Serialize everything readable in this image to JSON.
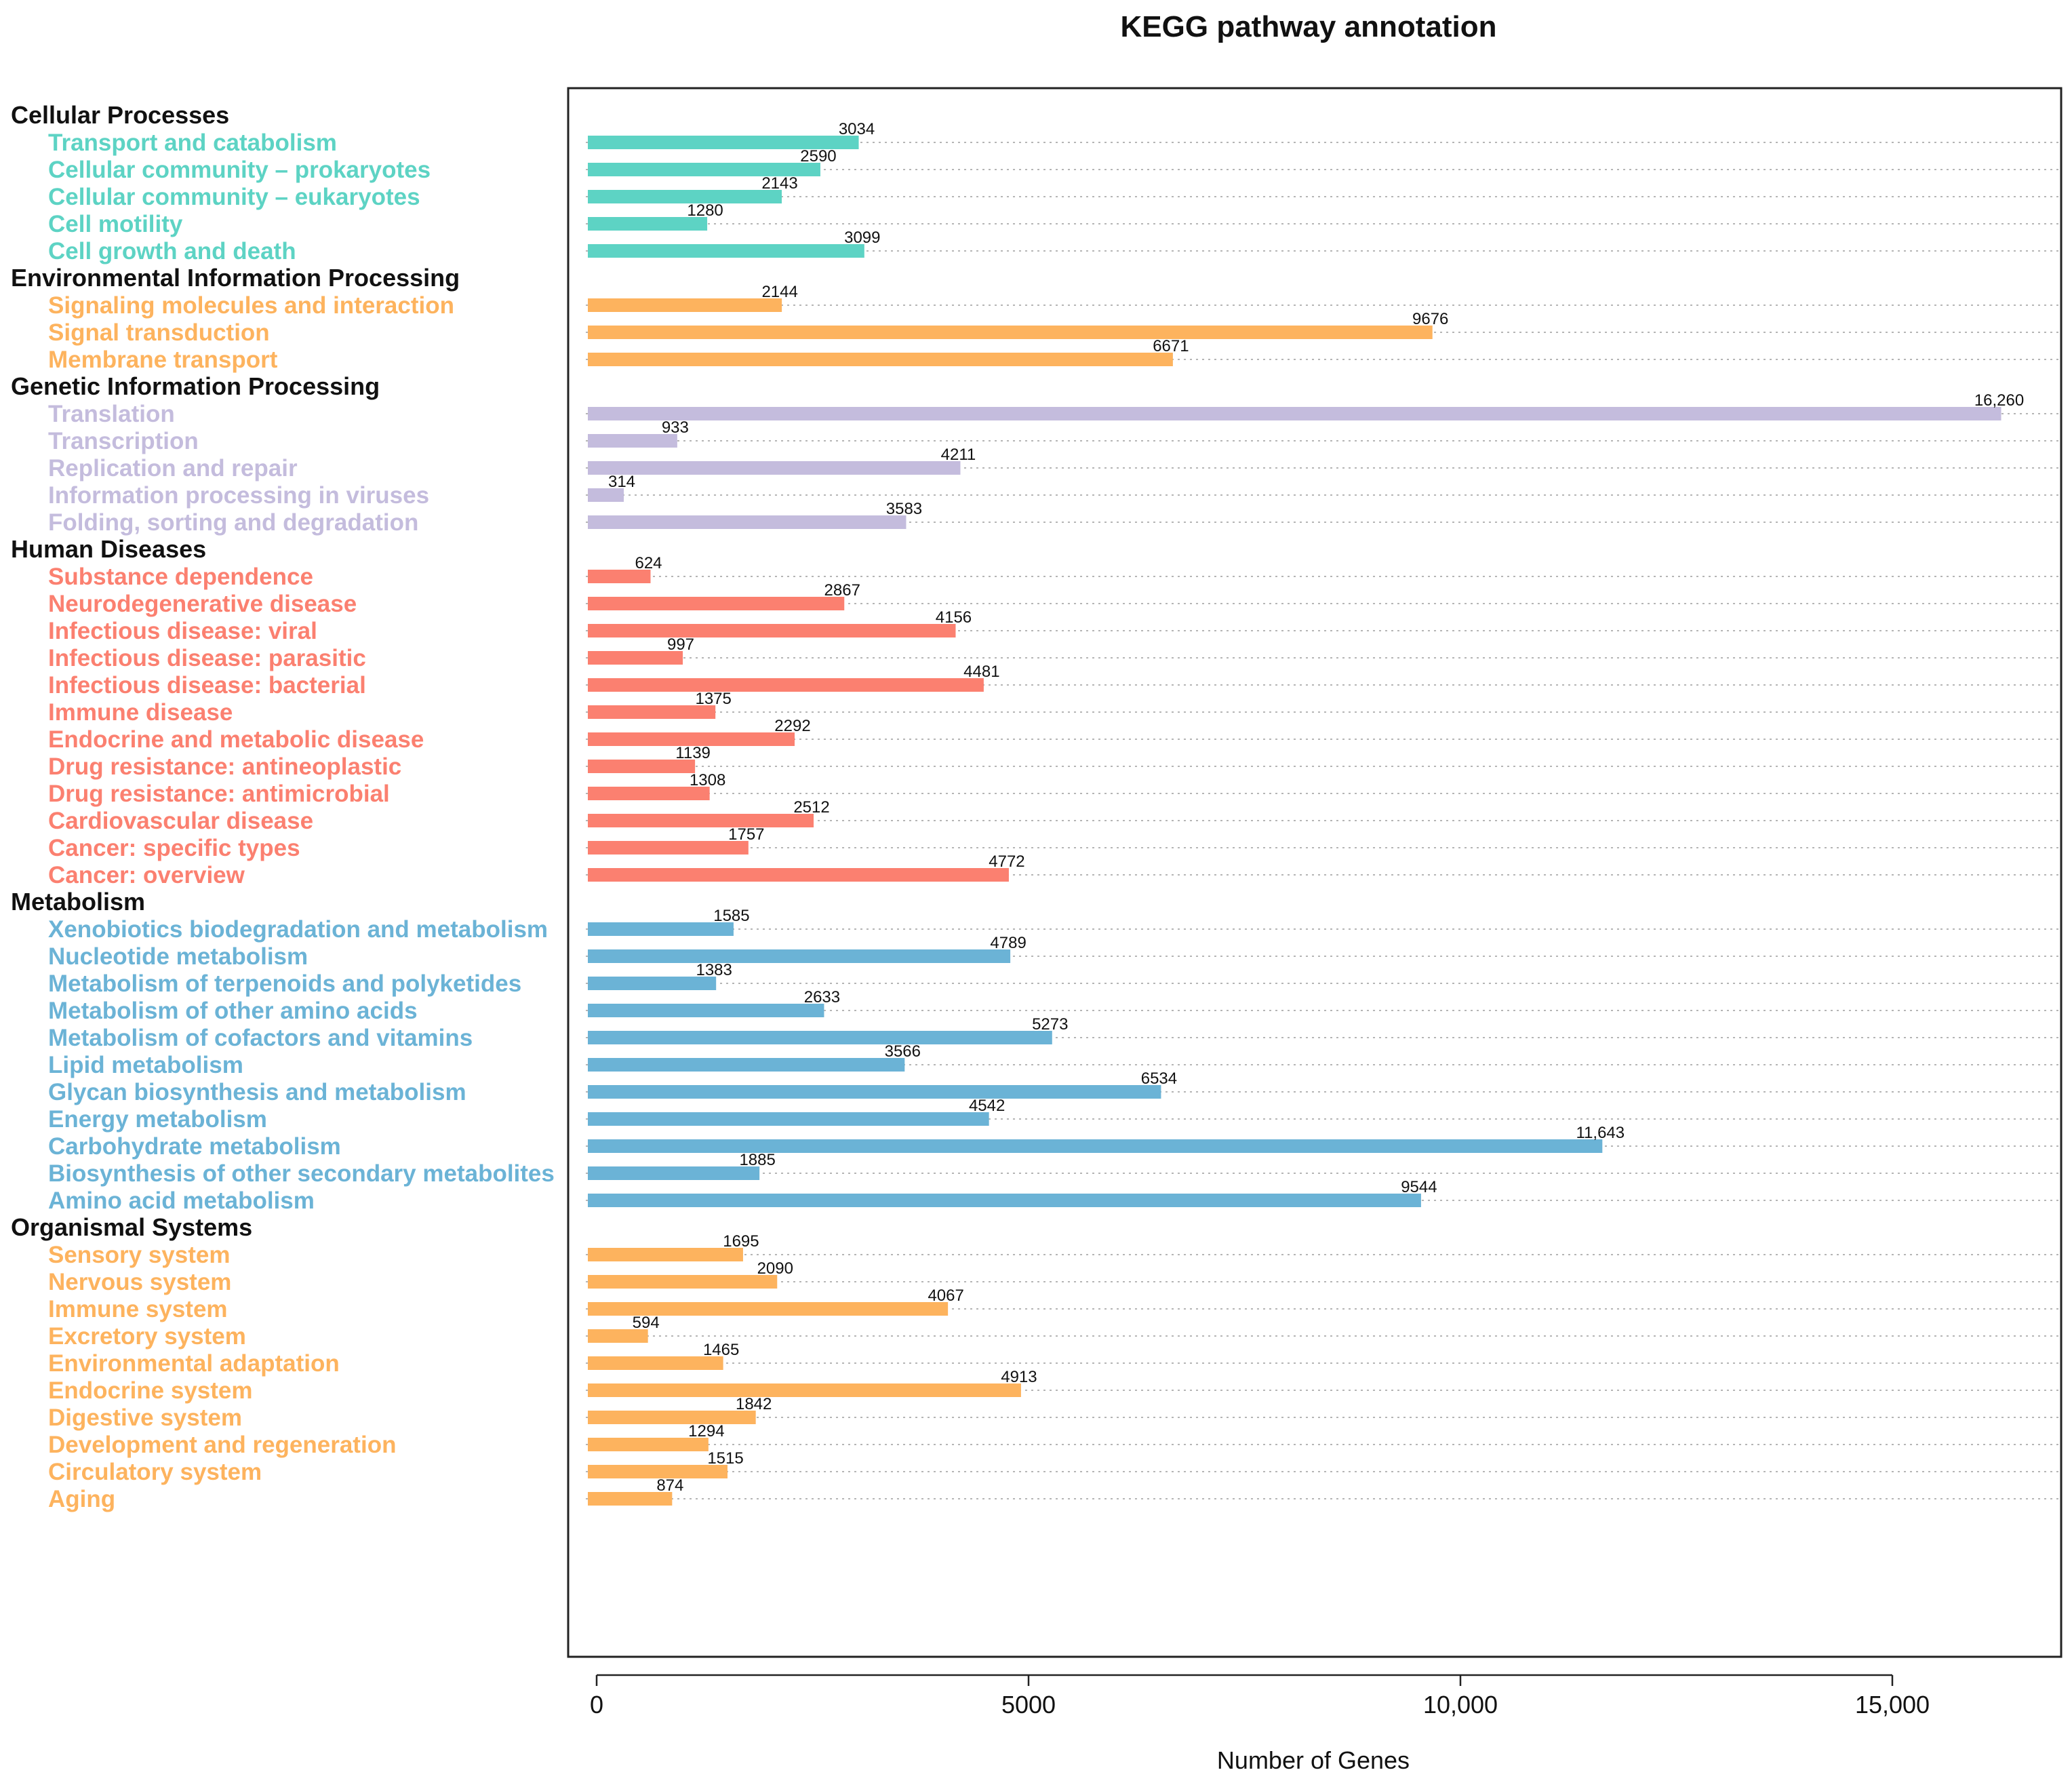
{
  "chart_data": {
    "type": "bar",
    "orientation": "horizontal",
    "title": "KEGG pathway annotation",
    "xlabel": "Number of Genes",
    "ylabel": "",
    "xlim": [
      0,
      16500
    ],
    "xticks": [
      0,
      5000,
      10000,
      15000
    ],
    "xtick_labels": [
      "0",
      "5000",
      "10,000",
      "15,000"
    ],
    "grid": "horizontal dotted",
    "legend": "none",
    "groups": [
      {
        "name": "Cellular Processes",
        "color": "#5dd3c4",
        "items": [
          {
            "label": "Transport and catabolism",
            "value": 3034,
            "value_label": "3034"
          },
          {
            "label": "Cellular community – prokaryotes",
            "value": 2590,
            "value_label": "2590"
          },
          {
            "label": "Cellular community – eukaryotes",
            "value": 2143,
            "value_label": "2143"
          },
          {
            "label": "Cell motility",
            "value": 1280,
            "value_label": "1280"
          },
          {
            "label": "Cell growth and death",
            "value": 3099,
            "value_label": "3099"
          }
        ]
      },
      {
        "name": "Environmental Information Processing",
        "color": "#fdb35e",
        "items": [
          {
            "label": "Signaling molecules and interaction",
            "value": 2144,
            "value_label": "2144"
          },
          {
            "label": "Signal transduction",
            "value": 9676,
            "value_label": "9676"
          },
          {
            "label": "Membrane transport",
            "value": 6671,
            "value_label": "6671"
          }
        ]
      },
      {
        "name": "Genetic Information Processing",
        "color": "#c4bcdd",
        "items": [
          {
            "label": "Translation",
            "value": 16260,
            "value_label": "16,260"
          },
          {
            "label": "Transcription",
            "value": 933,
            "value_label": "933"
          },
          {
            "label": "Replication and repair",
            "value": 4211,
            "value_label": "4211"
          },
          {
            "label": "Information processing in viruses",
            "value": 314,
            "value_label": "314"
          },
          {
            "label": "Folding, sorting and degradation",
            "value": 3583,
            "value_label": "3583"
          }
        ]
      },
      {
        "name": "Human Diseases",
        "color": "#fb8070",
        "items": [
          {
            "label": "Substance dependence",
            "value": 624,
            "value_label": "624"
          },
          {
            "label": "Neurodegenerative disease",
            "value": 2867,
            "value_label": "2867"
          },
          {
            "label": "Infectious disease: viral",
            "value": 4156,
            "value_label": "4156"
          },
          {
            "label": "Infectious disease: parasitic",
            "value": 997,
            "value_label": "997"
          },
          {
            "label": "Infectious disease: bacterial",
            "value": 4481,
            "value_label": "4481"
          },
          {
            "label": "Immune disease",
            "value": 1375,
            "value_label": "1375"
          },
          {
            "label": "Endocrine and metabolic disease",
            "value": 2292,
            "value_label": "2292"
          },
          {
            "label": "Drug resistance: antineoplastic",
            "value": 1139,
            "value_label": "1139"
          },
          {
            "label": "Drug resistance: antimicrobial",
            "value": 1308,
            "value_label": "1308"
          },
          {
            "label": "Cardiovascular disease",
            "value": 2512,
            "value_label": "2512"
          },
          {
            "label": "Cancer: specific types",
            "value": 1757,
            "value_label": "1757"
          },
          {
            "label": "Cancer: overview",
            "value": 4772,
            "value_label": "4772"
          }
        ]
      },
      {
        "name": "Metabolism",
        "color": "#6bb3d6",
        "items": [
          {
            "label": "Xenobiotics biodegradation and metabolism",
            "value": 1585,
            "value_label": "1585"
          },
          {
            "label": "Nucleotide metabolism",
            "value": 4789,
            "value_label": "4789"
          },
          {
            "label": "Metabolism of terpenoids and polyketides",
            "value": 1383,
            "value_label": "1383"
          },
          {
            "label": "Metabolism of other amino acids",
            "value": 2633,
            "value_label": "2633"
          },
          {
            "label": "Metabolism of cofactors and vitamins",
            "value": 5273,
            "value_label": "5273"
          },
          {
            "label": "Lipid metabolism",
            "value": 3566,
            "value_label": "3566"
          },
          {
            "label": "Glycan biosynthesis and metabolism",
            "value": 6534,
            "value_label": "6534"
          },
          {
            "label": "Energy metabolism",
            "value": 4542,
            "value_label": "4542"
          },
          {
            "label": "Carbohydrate metabolism",
            "value": 11643,
            "value_label": "11,643"
          },
          {
            "label": "Biosynthesis of other secondary metabolites",
            "value": 1885,
            "value_label": "1885"
          },
          {
            "label": "Amino acid metabolism",
            "value": 9544,
            "value_label": "9544"
          }
        ]
      },
      {
        "name": "Organismal Systems",
        "color": "#fdb35e",
        "items": [
          {
            "label": "Sensory system",
            "value": 1695,
            "value_label": "1695"
          },
          {
            "label": "Nervous system",
            "value": 2090,
            "value_label": "2090"
          },
          {
            "label": "Immune system",
            "value": 4067,
            "value_label": "4067"
          },
          {
            "label": "Excretory system",
            "value": 594,
            "value_label": "594"
          },
          {
            "label": "Environmental adaptation",
            "value": 1465,
            "value_label": "1465"
          },
          {
            "label": "Endocrine system",
            "value": 4913,
            "value_label": "4913"
          },
          {
            "label": "Digestive system",
            "value": 1842,
            "value_label": "1842"
          },
          {
            "label": "Development and regeneration",
            "value": 1294,
            "value_label": "1294"
          },
          {
            "label": "Circulatory system",
            "value": 1515,
            "value_label": "1515"
          },
          {
            "label": "Aging",
            "value": 874,
            "value_label": "874"
          }
        ]
      }
    ]
  }
}
